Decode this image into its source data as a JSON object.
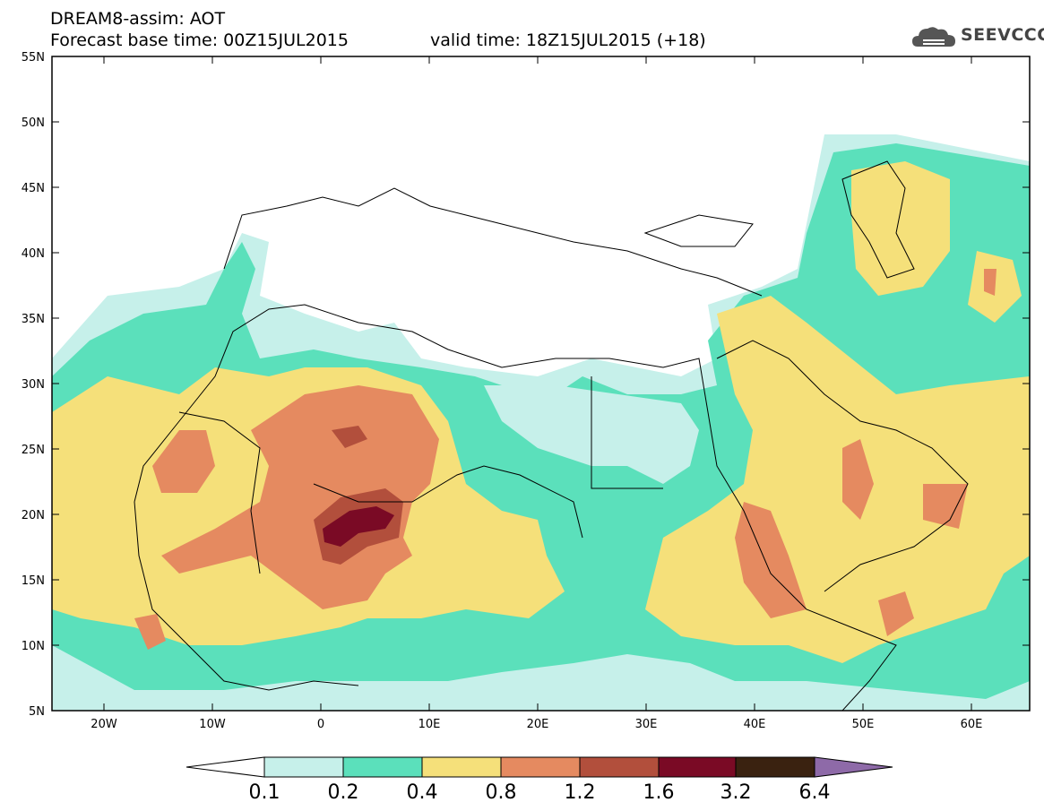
{
  "header": {
    "title_line1": "DREAM8-assim: AOT",
    "title_line2": "Forecast base time: 00Z15JUL2015",
    "valid_time": "valid time: 18Z15JUL2015 (+18)",
    "logo_text": "SEEVCCC"
  },
  "map": {
    "lat_labels": [
      "55N",
      "50N",
      "45N",
      "40N",
      "35N",
      "30N",
      "25N",
      "20N",
      "15N",
      "10N",
      "5N"
    ],
    "lon_labels": [
      "20W",
      "10W",
      "0",
      "10E",
      "20E",
      "30E",
      "40E",
      "50E",
      "60E"
    ],
    "field": "AOT",
    "colors": {
      "c1": "#c6f0ea",
      "c2": "#5be0bb",
      "c3": "#f5e07a",
      "c4": "#e58a60",
      "c5": "#b24f3c",
      "c6": "#7a0a25",
      "c7": "#3a2210",
      "c8": "#8e6aa8",
      "border": "#000000"
    }
  },
  "colorbar": {
    "labels": [
      "0.1",
      "0.2",
      "0.4",
      "0.8",
      "1.2",
      "1.6",
      "3.2",
      "6.4"
    ]
  }
}
